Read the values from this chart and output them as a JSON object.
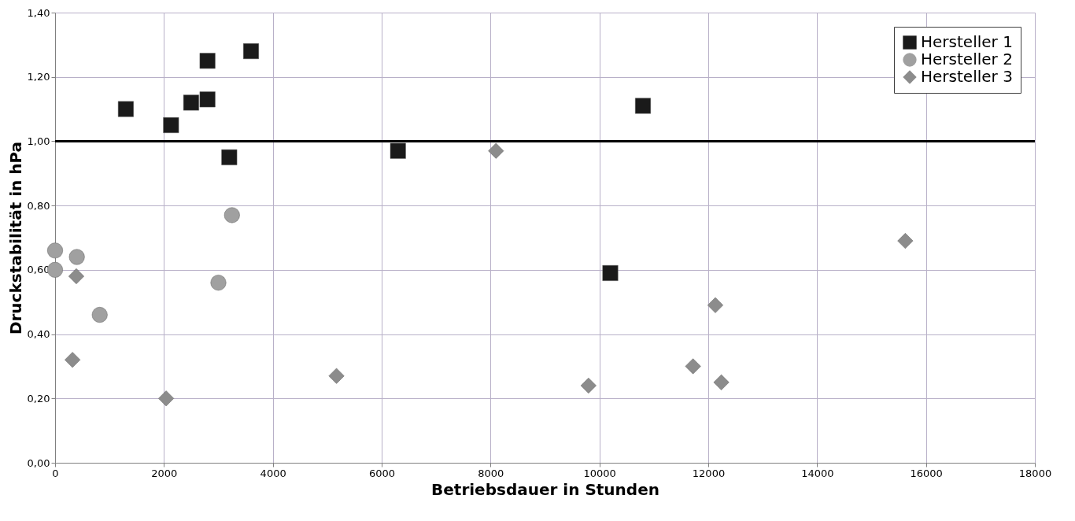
{
  "chart_data": {
    "type": "scatter",
    "xlabel": "Betriebsdauer in Stunden",
    "ylabel": "Druckstabilität in hPa",
    "xlim": [
      0,
      18000
    ],
    "xticks": [
      0,
      2000,
      4000,
      6000,
      8000,
      10000,
      12000,
      14000,
      16000,
      18000
    ],
    "ylim": [
      0,
      1.4
    ],
    "yticks": [
      {
        "value": 0,
        "label": "0,00"
      },
      {
        "value": 0.2,
        "label": "0,20"
      },
      {
        "value": 0.4,
        "label": "0,40"
      },
      {
        "value": 0.6,
        "label": "0,60"
      },
      {
        "value": 0.8,
        "label": "0,80"
      },
      {
        "value": 1.0,
        "label": "1,00"
      },
      {
        "value": 1.2,
        "label": "1,20"
      },
      {
        "value": 1.4,
        "label": "1,40"
      }
    ],
    "grid": true,
    "legend": "top right",
    "ref_lines": [
      {
        "axis": "y",
        "value": 1.0,
        "color": "#000000",
        "line_style": "solid"
      }
    ],
    "series": [
      {
        "name": "Hersteller 1",
        "color": "#1a1a1a",
        "marker": "square",
        "x": [
          1300,
          2130,
          2500,
          2800,
          2800,
          3200,
          3600,
          6300,
          10200,
          10800
        ],
        "values": [
          1.1,
          1.05,
          1.12,
          1.13,
          1.25,
          0.95,
          1.28,
          0.97,
          0.59,
          1.11
        ]
      },
      {
        "name": "Hersteller 2",
        "color": "#a0a0a0",
        "marker": "circle",
        "x": [
          0,
          0,
          400,
          820,
          3000,
          3250
        ],
        "values": [
          0.66,
          0.6,
          0.64,
          0.46,
          0.56,
          0.77
        ]
      },
      {
        "name": "Hersteller 3",
        "color": "#8c8c8c",
        "marker": "diamond",
        "x": [
          390,
          320,
          2040,
          5170,
          8100,
          9800,
          11720,
          12130,
          12240,
          15620
        ],
        "values": [
          0.58,
          0.32,
          0.2,
          0.27,
          0.97,
          0.24,
          0.3,
          0.49,
          0.25,
          0.69
        ]
      }
    ]
  }
}
